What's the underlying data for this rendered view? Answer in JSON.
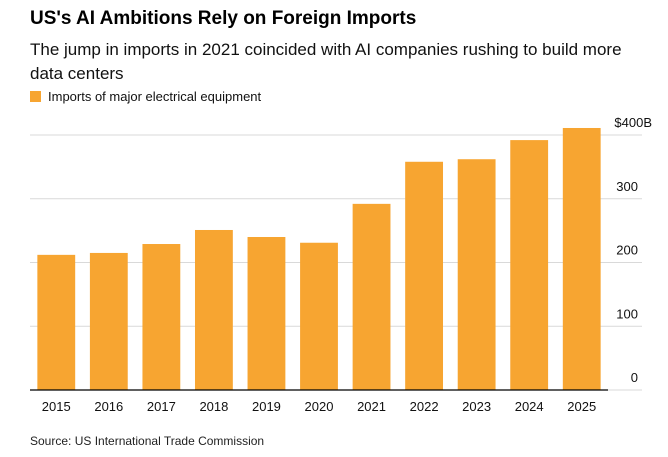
{
  "chart_data": {
    "type": "bar",
    "title": "US's AI Ambitions Rely on Foreign Imports",
    "subtitle": "The jump in imports in 2021 coincided with AI companies rushing to build more data centers",
    "legend": "Imports of major electrical equipment",
    "source": "Source: US International Trade Commission",
    "categories": [
      "2015",
      "2016",
      "2017",
      "2018",
      "2019",
      "2020",
      "2021",
      "2022",
      "2023",
      "2024",
      "2025"
    ],
    "values": [
      212,
      215,
      229,
      251,
      240,
      231,
      292,
      358,
      362,
      392,
      411
    ],
    "color": "#f7a531",
    "ylim": [
      0,
      400
    ],
    "yticks": [
      0,
      100,
      200,
      300,
      {
        "value": 400,
        "label": "$400B"
      }
    ],
    "grid": true
  }
}
